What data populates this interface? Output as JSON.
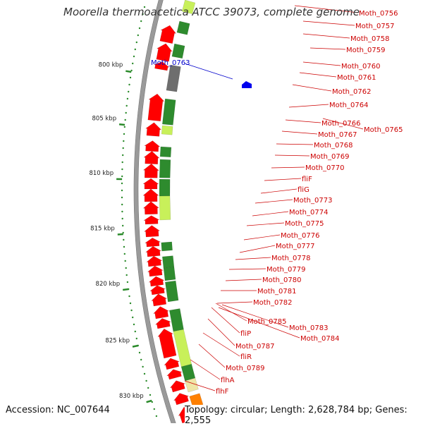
{
  "title": "Moorella thermoacetica ATCC 39073, complete genome",
  "accession_text": "Accession: NC_007644",
  "topology_text": "Topology: circular; Length: 2,628,784 bp; Genes: 2,555",
  "colors": {
    "gene_red": "#ff0000",
    "gene_green": "#2e8b2e",
    "gene_lime": "#c8f05a",
    "gene_gray": "#6e6e6e",
    "gene_orange": "#ff8000",
    "gene_cream": "#efe6a6",
    "label_red": "#cc0000",
    "label_blue": "#0000cc",
    "backbone": "#9a9a9a"
  },
  "scale_labels": [
    "800 kbp",
    "805 kbp",
    "810 kbp",
    "815 kbp",
    "820 kbp",
    "825 kbp",
    "830 kbp"
  ],
  "highlight_label": "Moth_0763",
  "gene_labels": [
    "Moth_0756",
    "Moth_0757",
    "Moth_0758",
    "Moth_0759",
    "Moth_0760",
    "Moth_0761",
    "Moth_0762",
    "Moth_0764",
    "Moth_0766",
    "Moth_0765",
    "Moth_0767",
    "Moth_0768",
    "Moth_0769",
    "Moth_0770",
    "fliF",
    "fliG",
    "Moth_0773",
    "Moth_0774",
    "Moth_0775",
    "Moth_0776",
    "Moth_0777",
    "Moth_0778",
    "Moth_0779",
    "Moth_0780",
    "Moth_0781",
    "Moth_0782",
    "Moth_0785",
    "Moth_0783",
    "Moth_0784",
    "fliP",
    "Moth_0787",
    "fliR",
    "Moth_0789",
    "flhA",
    "flhF"
  ]
}
